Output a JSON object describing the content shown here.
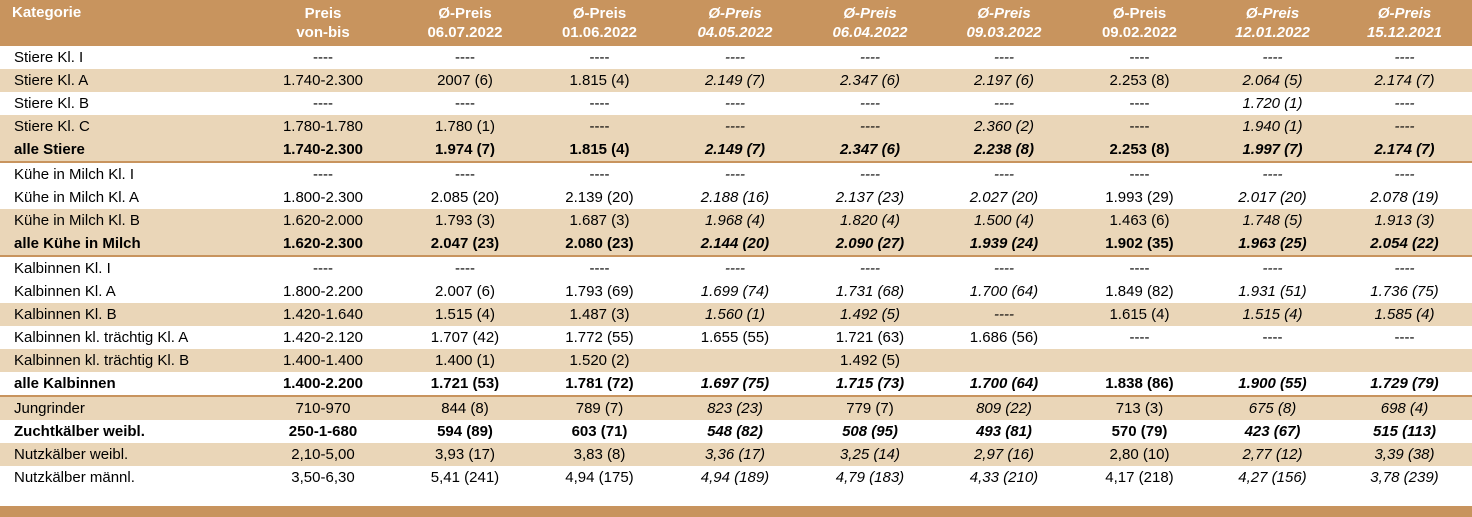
{
  "header": {
    "kategorie": "Kategorie",
    "cols": [
      {
        "line1": "Preis",
        "line2": "von-bis"
      },
      {
        "line1": "Ø-Preis",
        "line2": "06.07.2022"
      },
      {
        "line1": "Ø-Preis",
        "line2": "01.06.2022"
      },
      {
        "line1": "Ø-Preis",
        "line2": "04.05.2022"
      },
      {
        "line1": "Ø-Preis",
        "line2": "06.04.2022"
      },
      {
        "line1": "Ø-Preis",
        "line2": "09.03.2022"
      },
      {
        "line1": "Ø-Preis",
        "line2": "09.02.2022"
      },
      {
        "line1": "Ø-Preis",
        "line2": "12.01.2022"
      },
      {
        "line1": "Ø-Preis",
        "line2": "15.12.2021"
      }
    ]
  },
  "rows": [
    {
      "label": "Stiere Kl. I",
      "cells": [
        "----",
        "----",
        "----",
        "----",
        "----",
        "----",
        "----",
        "----",
        "----"
      ]
    },
    {
      "label": "Stiere Kl. A",
      "cells": [
        "1.740-2.300",
        "2007 (6)",
        "1.815 (4)",
        "2.149 (7)",
        "2.347 (6)",
        "2.197 (6)",
        "2.253 (8)",
        "2.064 (5)",
        "2.174 (7)"
      ]
    },
    {
      "label": "Stiere Kl. B",
      "cells": [
        "----",
        "----",
        "----",
        "----",
        "----",
        "----",
        "----",
        "1.720 (1)",
        "----"
      ]
    },
    {
      "label": "Stiere Kl. C",
      "cells": [
        "1.780-1.780",
        "1.780 (1)",
        "----",
        "----",
        "----",
        "2.360 (2)",
        "----",
        "1.940 (1)",
        "----"
      ]
    },
    {
      "label": "alle Stiere",
      "cells": [
        "1.740-2.300",
        "1.974 (7)",
        "1.815 (4)",
        "2.149 (7)",
        "2.347 (6)",
        "2.238 (8)",
        "2.253 (8)",
        "1.997 (7)",
        "2.174 (7)"
      ]
    },
    {
      "label": "Kühe in Milch Kl. I",
      "cells": [
        "----",
        "----",
        "----",
        "----",
        "----",
        "----",
        "----",
        "----",
        "----"
      ]
    },
    {
      "label": "Kühe in Milch Kl. A",
      "cells": [
        "1.800-2.300",
        "2.085 (20)",
        "2.139 (20)",
        "2.188 (16)",
        "2.137 (23)",
        "2.027 (20)",
        "1.993 (29)",
        "2.017 (20)",
        "2.078 (19)"
      ]
    },
    {
      "label": "Kühe in Milch Kl. B",
      "cells": [
        "1.620-2.000",
        "1.793 (3)",
        "1.687 (3)",
        "1.968 (4)",
        "1.820 (4)",
        "1.500 (4)",
        "1.463 (6)",
        "1.748 (5)",
        "1.913 (3)"
      ]
    },
    {
      "label": "alle Kühe in Milch",
      "cells": [
        "1.620-2.300",
        "2.047 (23)",
        "2.080 (23)",
        "2.144 (20)",
        "2.090 (27)",
        "1.939 (24)",
        "1.902 (35)",
        "1.963 (25)",
        "2.054 (22)"
      ]
    },
    {
      "label": "Kalbinnen Kl. I",
      "cells": [
        "----",
        "----",
        "----",
        "----",
        "----",
        "----",
        "----",
        "----",
        "----"
      ]
    },
    {
      "label": "Kalbinnen Kl. A",
      "cells": [
        "1.800-2.200",
        "2.007 (6)",
        "1.793 (69)",
        "1.699 (74)",
        "1.731 (68)",
        "1.700 (64)",
        "1.849 (82)",
        "1.931 (51)",
        "1.736 (75)"
      ]
    },
    {
      "label": "Kalbinnen Kl. B",
      "cells": [
        "1.420-1.640",
        "1.515 (4)",
        "1.487 (3)",
        "1.560 (1)",
        "1.492 (5)",
        "----",
        "1.615 (4)",
        "1.515 (4)",
        "1.585 (4)"
      ]
    },
    {
      "label": "Kalbinnen kl. trächtig Kl. A",
      "cells": [
        "1.420-2.120",
        "1.707 (42)",
        "1.772 (55)",
        "1.655 (55)",
        "1.721 (63)",
        "1.686 (56)",
        "----",
        "----",
        "----"
      ]
    },
    {
      "label": "Kalbinnen kl. trächtig Kl. B",
      "cells": [
        "1.400-1.400",
        "1.400 (1)",
        "1.520 (2)",
        "",
        "1.492 (5)",
        "",
        "",
        "",
        ""
      ]
    },
    {
      "label": "alle Kalbinnen",
      "cells": [
        "1.400-2.200",
        "1.721 (53)",
        "1.781 (72)",
        "1.697 (75)",
        "1.715 (73)",
        "1.700 (64)",
        "1.838 (86)",
        "1.900 (55)",
        "1.729 (79)"
      ]
    },
    {
      "label": "Jungrinder",
      "cells": [
        "710-970",
        "844 (8)",
        "789 (7)",
        "823 (23)",
        "779 (7)",
        "809 (22)",
        "713 (3)",
        "675 (8)",
        "698 (4)"
      ]
    },
    {
      "label": "Zuchtkälber weibl.",
      "cells": [
        "250-1-680",
        "594 (89)",
        "603 (71)",
        "548 (82)",
        "508 (95)",
        "493 (81)",
        "570 (79)",
        "423 (67)",
        "515 (113)"
      ]
    },
    {
      "label": "Nutzkälber weibl.",
      "cells": [
        "2,10-5,00",
        "3,93 (17)",
        "3,83 (8)",
        "3,36 (17)",
        "3,25 (14)",
        "2,97 (16)",
        "2,80 (10)",
        "2,77  (12)",
        "3,39 (38)"
      ]
    },
    {
      "label": "Nutzkälber männl.",
      "cells": [
        "3,50-6,30",
        "5,41 (241)",
        "4,94 (175)",
        "4,94 (189)",
        "4,79 (183)",
        "4,33 (210)",
        "4,17 (218)",
        "4,27  (156)",
        "3,78 (239)"
      ]
    }
  ]
}
